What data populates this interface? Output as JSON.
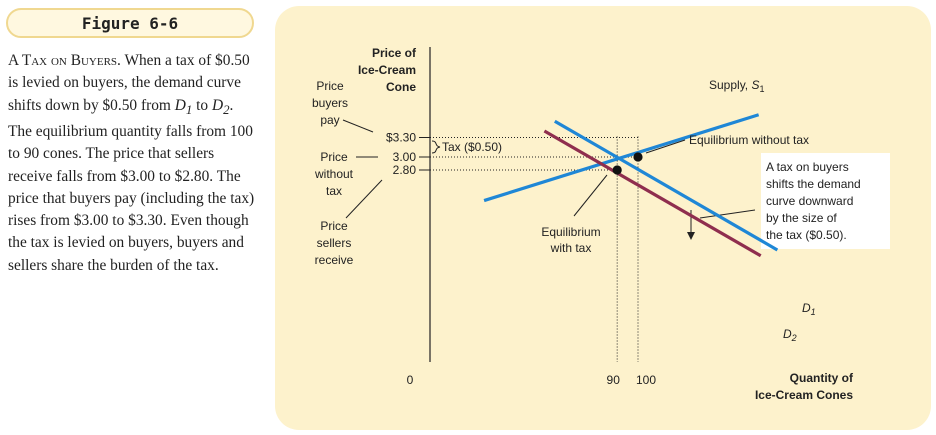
{
  "figure": {
    "label": "Figure 6-6",
    "caption_head": "A Tax on Buyers.",
    "caption_parts": [
      " When a tax of $0.50 is levied on buyers, the demand curve shifts down by $0.50 from ",
      " to ",
      ". The equilibrium quantity falls from 100 to 90 cones. The price that sellers receive falls from $3.00 to $2.80. The price that buyers pay (including the tax) rises from $3.00 to $3.30. Even though the tax is levied on buyers, buyers and sellers share the burden of the tax."
    ],
    "d1": "D",
    "d1_sub": "1",
    "d2": "D",
    "d2_sub": "2"
  },
  "chart_data": {
    "type": "line",
    "ylabel": [
      "Price of",
      "Ice-Cream",
      "Cone"
    ],
    "xlabel": [
      "Quantity of",
      "Ice-Cream Cones"
    ],
    "origin_label": "0",
    "x_ticks": [
      {
        "value": 90,
        "label": "90"
      },
      {
        "value": 100,
        "label": "100"
      }
    ],
    "y_ticks": [
      {
        "value": 3.3,
        "label": "$3.30"
      },
      {
        "value": 3.0,
        "label": "3.00"
      },
      {
        "value": 2.8,
        "label": "2.80"
      }
    ],
    "series": [
      {
        "name": "Supply",
        "sub": "1",
        "key": "supply",
        "color": "#1f87d6",
        "points": [
          [
            26,
            2.33
          ],
          [
            158,
            3.65
          ]
        ]
      },
      {
        "name": "D",
        "sub": "1",
        "key": "d1",
        "color": "#1f87d6",
        "points": [
          [
            60,
            3.55
          ],
          [
            167,
            1.57
          ]
        ]
      },
      {
        "name": "D",
        "sub": "2",
        "key": "d2",
        "color": "#8f2e4e",
        "points": [
          [
            55,
            3.4
          ],
          [
            159,
            1.48
          ]
        ]
      }
    ],
    "equilibria": [
      {
        "x": 100,
        "y": 3.0,
        "label": "Equilibrium without tax"
      },
      {
        "x": 90,
        "y": 2.8,
        "label": [
          "Equilibrium",
          "with tax"
        ]
      }
    ],
    "supply_label": "Supply, ",
    "supply_sub": "1",
    "tax_label": "Tax ($0.50)",
    "annotation": [
      "A tax on buyers",
      "shifts the demand",
      "curve downward",
      "by the size of",
      "the tax ($0.50)."
    ],
    "price_labels": {
      "buyers_pay": [
        "Price",
        "buyers",
        "pay"
      ],
      "without_tax": [
        "Price",
        "without",
        "tax"
      ],
      "sellers_receive": [
        "Price",
        "sellers",
        "receive"
      ]
    }
  }
}
